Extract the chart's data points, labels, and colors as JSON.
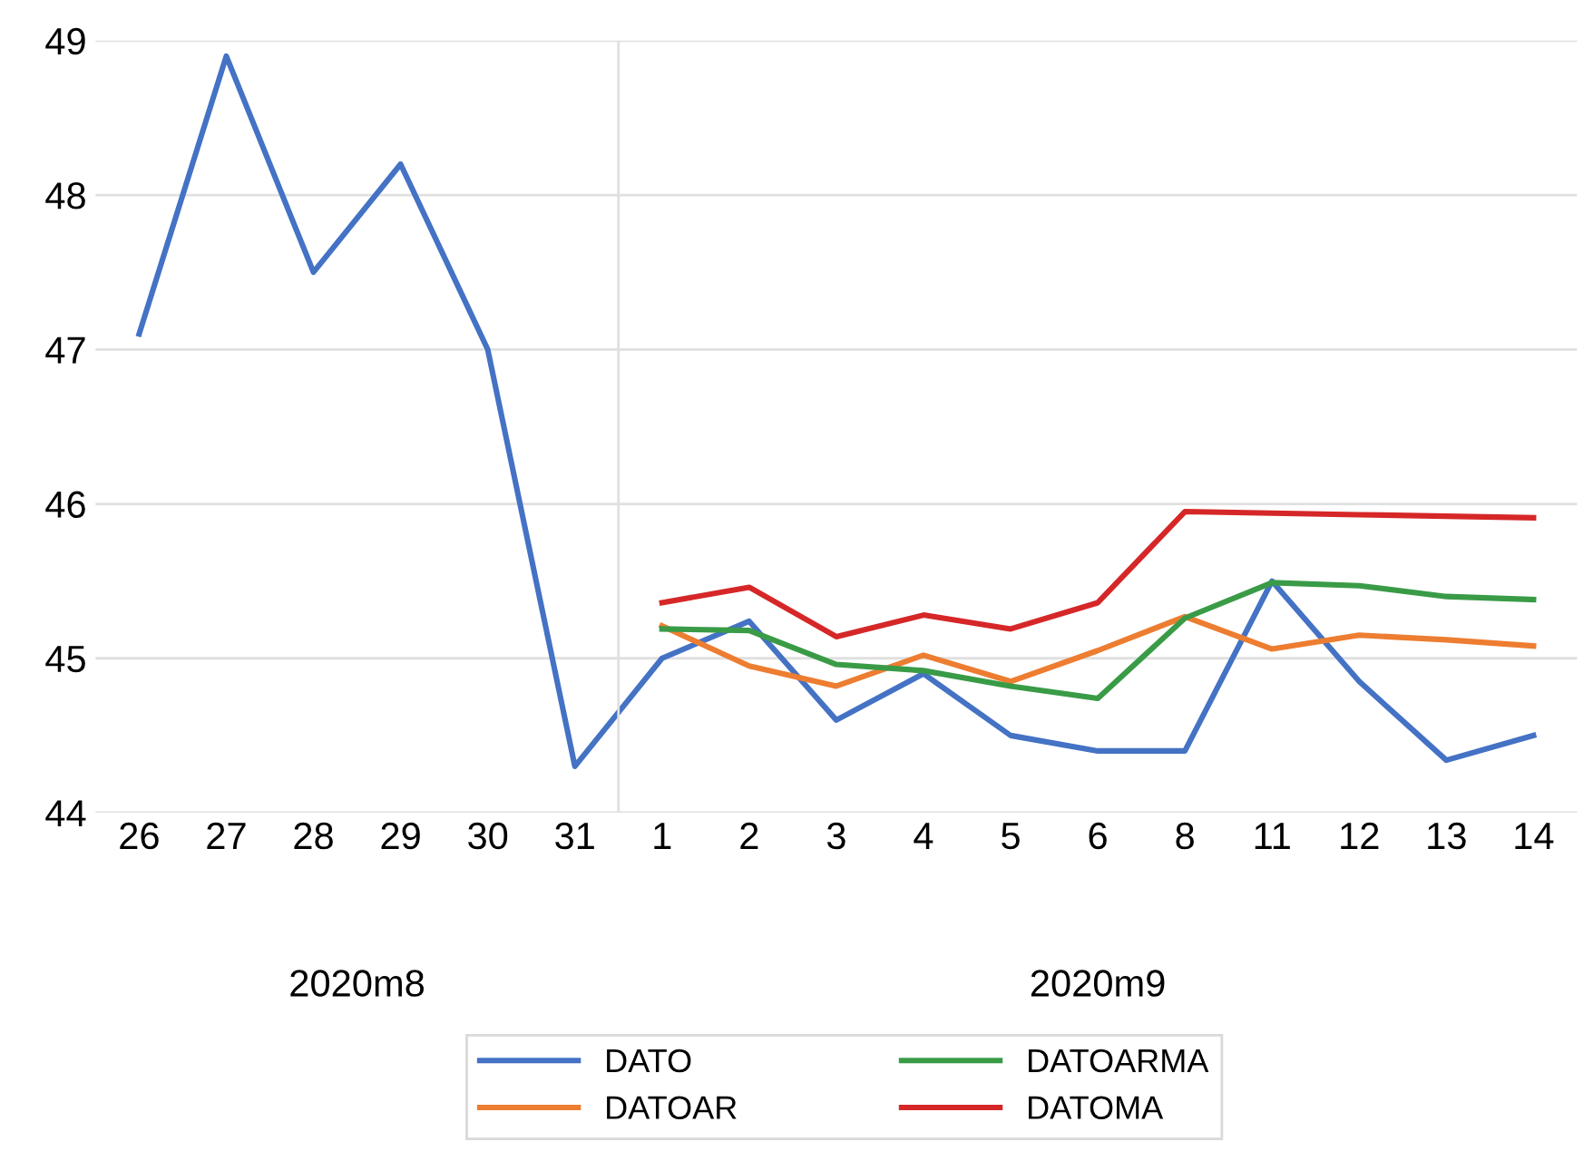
{
  "chart_data": {
    "type": "line",
    "categories": [
      "26",
      "27",
      "28",
      "29",
      "30",
      "31",
      "1",
      "2",
      "3",
      "4",
      "5",
      "6",
      "8",
      "11",
      "12",
      "13",
      "14"
    ],
    "annotations": [
      "2020m8",
      "2020m9"
    ],
    "series": [
      {
        "name": "DATO",
        "color": "#4472c4",
        "values": [
          47.1,
          48.9,
          47.5,
          48.2,
          47.0,
          44.3,
          45.0,
          45.24,
          44.6,
          44.9,
          44.5,
          44.4,
          44.4,
          45.5,
          44.85,
          44.34,
          44.5
        ]
      },
      {
        "name": "DATOAR",
        "color": "#ed7d31",
        "values": [
          null,
          null,
          null,
          null,
          null,
          null,
          45.21,
          44.95,
          44.82,
          45.02,
          44.85,
          45.05,
          45.27,
          45.06,
          45.15,
          45.12,
          45.08
        ]
      },
      {
        "name": "DATOARMA",
        "color": "#3a9b47",
        "values": [
          null,
          null,
          null,
          null,
          null,
          null,
          45.19,
          45.18,
          44.96,
          44.92,
          44.82,
          44.74,
          45.26,
          45.49,
          45.47,
          45.4,
          45.38
        ]
      },
      {
        "name": "DATOMA",
        "color": "#d62728",
        "values": [
          null,
          null,
          null,
          null,
          null,
          null,
          45.36,
          45.46,
          45.14,
          45.28,
          45.19,
          45.36,
          45.95,
          45.94,
          45.93,
          45.92,
          45.91
        ]
      }
    ],
    "ylim": [
      44,
      49
    ],
    "yticks": [
      44,
      45,
      46,
      47,
      48,
      49
    ],
    "grid": "y",
    "legend": "bottom",
    "marker": "none",
    "line_style": "solid"
  }
}
